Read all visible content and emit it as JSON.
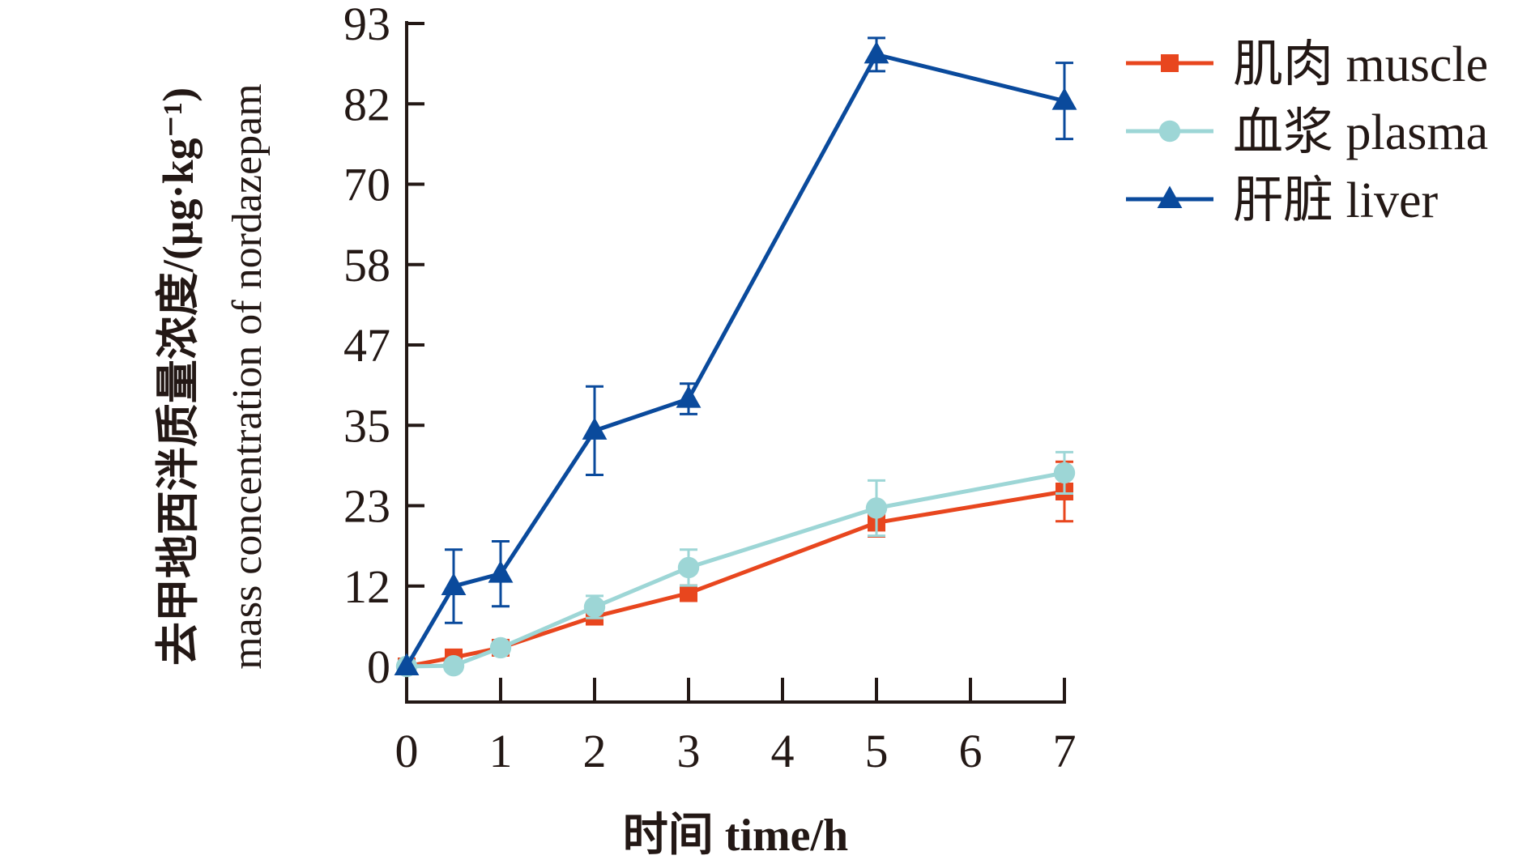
{
  "chart_data": {
    "type": "line",
    "title": "",
    "xlabel": "时间 time/h",
    "ylabel_cn": "去甲地西泮质量浓度/(μg·kg⁻¹)",
    "ylabel_en": "mass concentration of nordazepam",
    "xlim": [
      0,
      7
    ],
    "ylim": [
      0,
      93
    ],
    "x_ticks": [
      0,
      1,
      2,
      3,
      4,
      5,
      6,
      7
    ],
    "x_tick_labels": [
      "0",
      "1",
      "2",
      "3",
      "4",
      "5",
      "6",
      "7"
    ],
    "y_tick_labels": [
      "0",
      "12",
      "23",
      "35",
      "47",
      "58",
      "70",
      "82",
      "93"
    ],
    "grid": false,
    "legend_position": "top-right",
    "x": [
      0,
      0.5,
      1,
      2,
      3,
      5,
      7
    ],
    "series": [
      {
        "name": "肌肉 muscle",
        "color": "#e8461e",
        "marker": "square",
        "values": [
          0,
          1.3,
          2.7,
          7.2,
          10.6,
          20.8,
          25.3
        ],
        "errors": [
          0,
          0.8,
          0.5,
          0.6,
          0.6,
          2.0,
          4.3
        ]
      },
      {
        "name": "血浆 plasma",
        "color": "#9dd6d6",
        "marker": "circle",
        "values": [
          0,
          0.1,
          2.7,
          8.6,
          14.3,
          22.9,
          28.0
        ],
        "errors": [
          0,
          0.5,
          0.4,
          1.6,
          2.6,
          4.0,
          3.0
        ]
      },
      {
        "name": "肝脏 liver",
        "color": "#0a4a9c",
        "marker": "triangle",
        "values": [
          0,
          11.6,
          13.4,
          34.1,
          38.7,
          88.5,
          81.8
        ],
        "errors": [
          0,
          5.3,
          4.7,
          6.4,
          2.2,
          2.4,
          5.5
        ]
      }
    ]
  }
}
